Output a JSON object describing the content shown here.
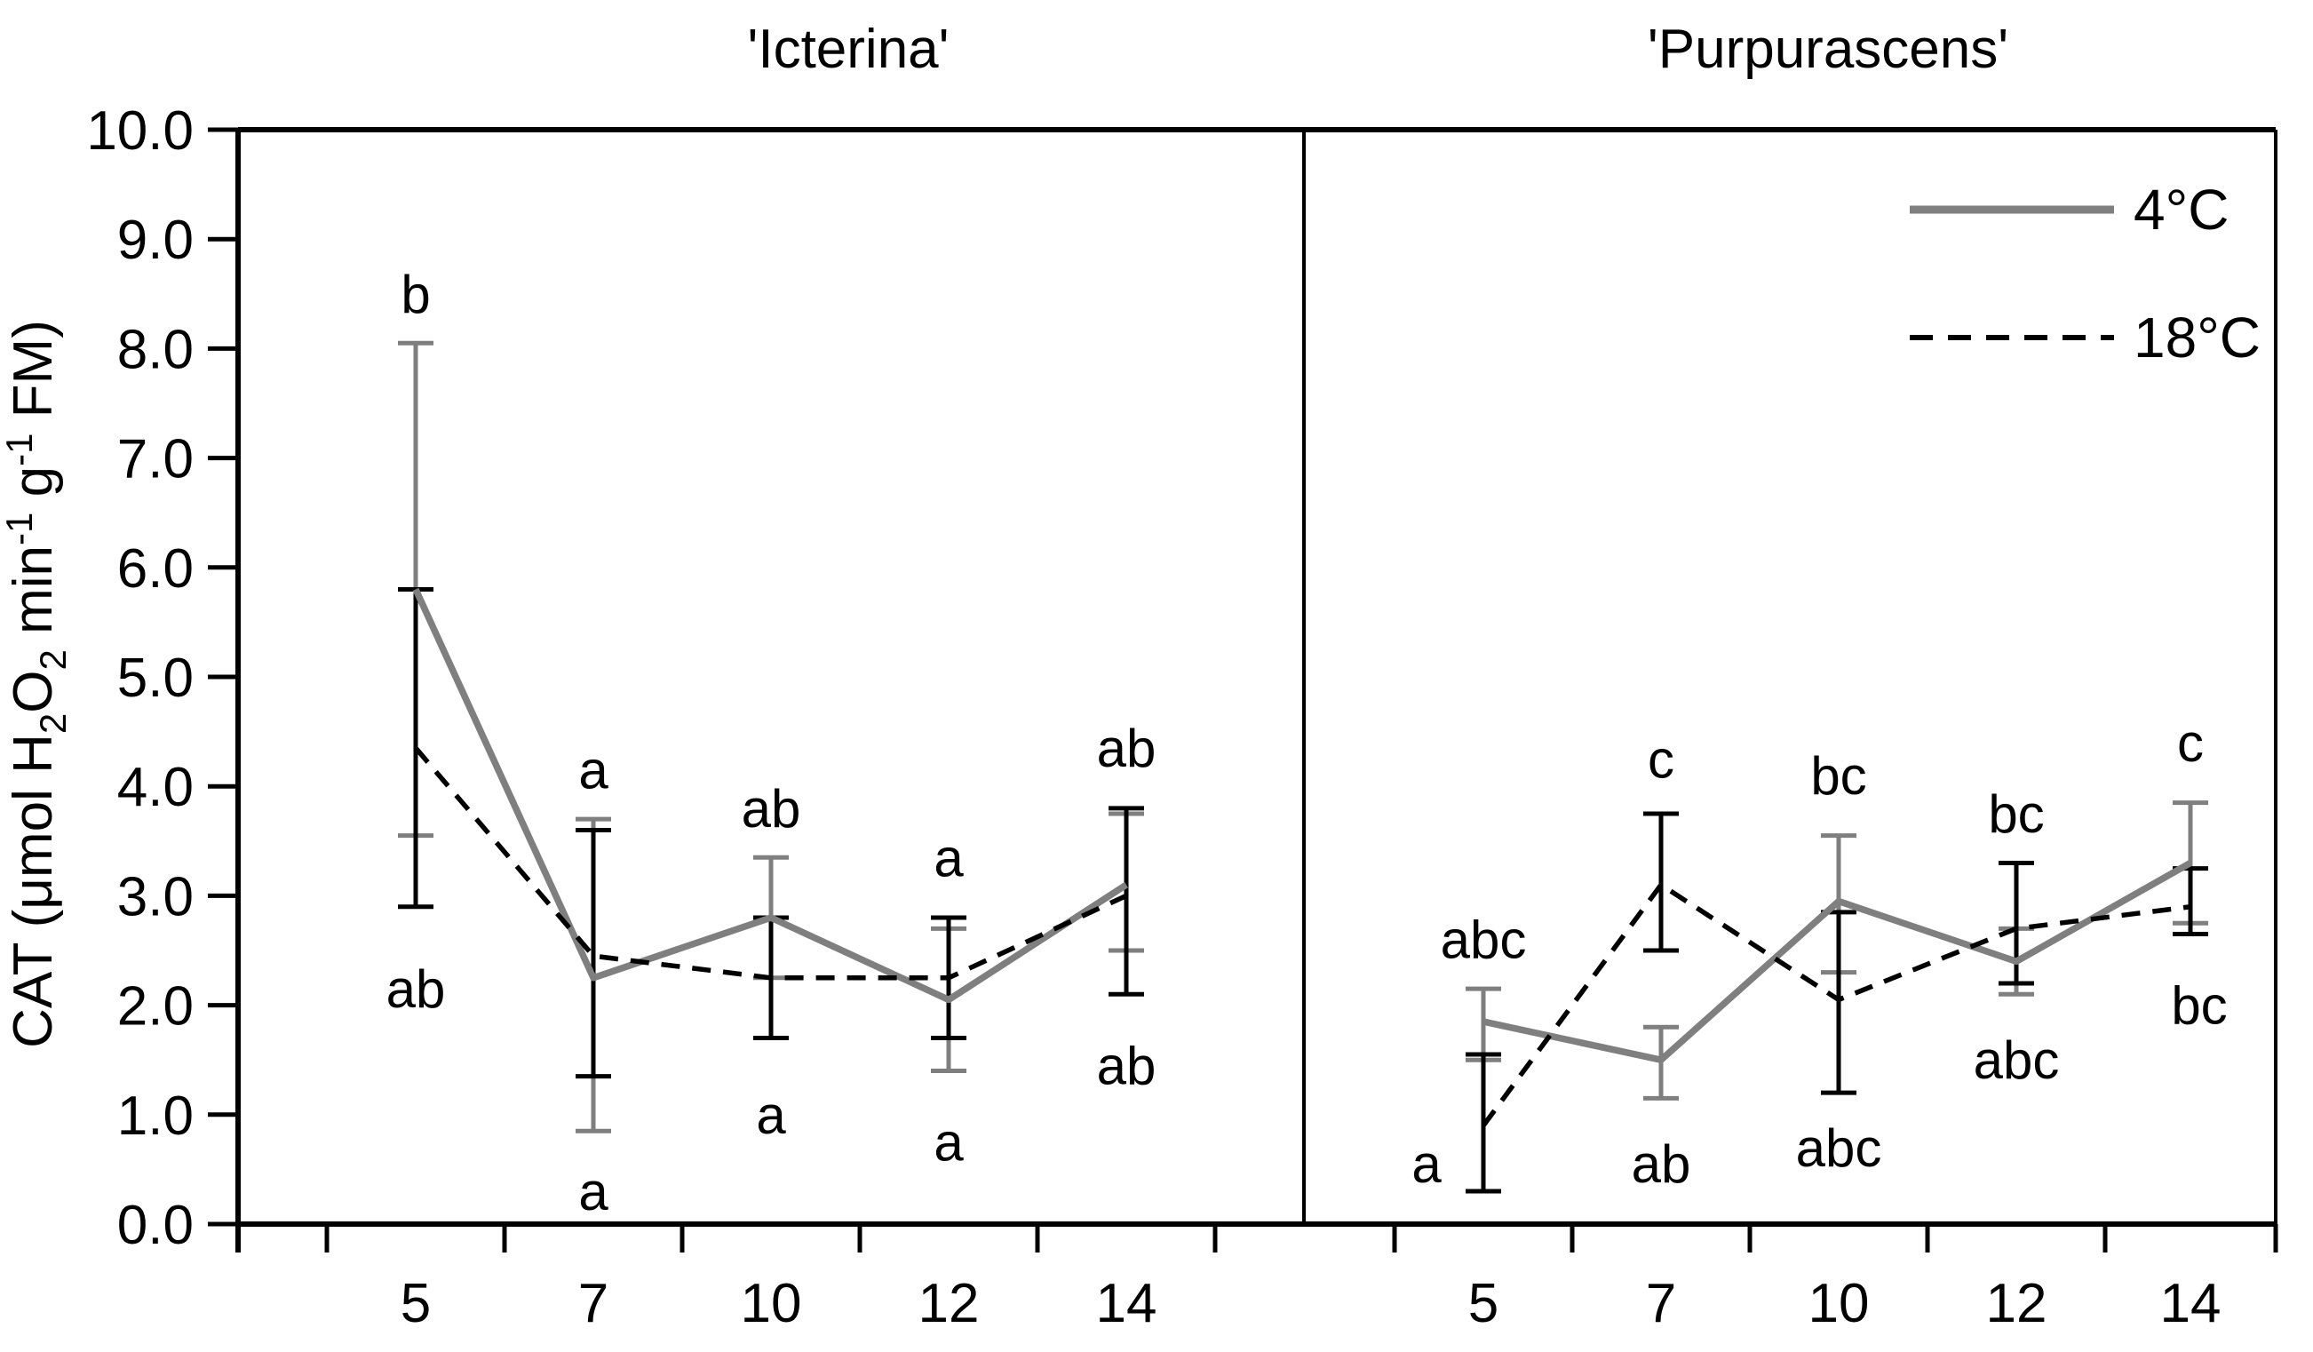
{
  "figure": {
    "description": "Two-panel line chart of CAT enzyme activity with error bars and significance letters"
  },
  "chart_data": {
    "type": "line",
    "title": "",
    "xlabel": "",
    "ylabel": "CAT (μmol H2O2 min-1 g-1 FM)",
    "ylabel_parts": [
      {
        "t": "CAT (μmol H",
        "p": "n"
      },
      {
        "t": "2",
        "p": "b"
      },
      {
        "t": "O",
        "p": "n"
      },
      {
        "t": "2",
        "p": "b"
      },
      {
        "t": " min",
        "p": "n"
      },
      {
        "t": "-1",
        "p": "u"
      },
      {
        "t": " g",
        "p": "n"
      },
      {
        "t": "-1",
        "p": "u"
      },
      {
        "t": " FM)",
        "p": "n"
      }
    ],
    "ylim": [
      0,
      10
    ],
    "ytick_labels": [
      "0.0",
      "1.0",
      "2.0",
      "3.0",
      "4.0",
      "5.0",
      "6.0",
      "7.0",
      "8.0",
      "9.0",
      "10.0"
    ],
    "x_categories": [
      "5",
      "7",
      "10",
      "12",
      "14"
    ],
    "grid": false,
    "legend_position": "top-right",
    "colors": {
      "gray": "#7f7f7f",
      "black": "#000000"
    },
    "legend": {
      "items": [
        {
          "label": "4°C",
          "line": "solid",
          "color_key": "gray"
        },
        {
          "label": "18°C",
          "line": "dashed",
          "color_key": "black"
        }
      ]
    },
    "panels": [
      {
        "title": "'Icterina'",
        "series": [
          {
            "name": "4°C",
            "color_key": "gray",
            "dash": false,
            "values": [
              5.8,
              2.25,
              2.8,
              2.05,
              3.1
            ],
            "err_lo": [
              3.55,
              0.85,
              2.25,
              1.4,
              2.5
            ],
            "err_hi": [
              8.05,
              3.7,
              3.35,
              2.7,
              3.75
            ],
            "letters": [
              {
                "i": 0,
                "t": "b",
                "v": 8.5
              },
              {
                "i": 1,
                "t": "a",
                "v": 0.3
              },
              {
                "i": 2,
                "t": "ab",
                "v": 3.8
              },
              {
                "i": 3,
                "t": "a",
                "v": 0.75
              },
              {
                "i": 4,
                "t": "ab",
                "v": 4.35
              }
            ]
          },
          {
            "name": "18°C",
            "color_key": "black",
            "dash": true,
            "values": [
              4.35,
              2.45,
              2.25,
              2.25,
              3.0
            ],
            "err_lo": [
              2.9,
              1.35,
              1.7,
              1.7,
              2.1
            ],
            "err_hi": [
              5.8,
              3.6,
              2.8,
              2.8,
              3.8
            ],
            "letters": [
              {
                "i": 0,
                "t": "ab",
                "v": 2.15
              },
              {
                "i": 1,
                "t": "a",
                "v": 4.15
              },
              {
                "i": 2,
                "t": "a",
                "v": 1.0
              },
              {
                "i": 3,
                "t": "a",
                "v": 3.35
              },
              {
                "i": 4,
                "t": "ab",
                "v": 1.45
              }
            ]
          }
        ]
      },
      {
        "title": "'Purpurascens'",
        "series": [
          {
            "name": "4°C",
            "color_key": "gray",
            "dash": false,
            "values": [
              1.85,
              1.5,
              2.95,
              2.4,
              3.3
            ],
            "err_lo": [
              1.5,
              1.15,
              2.3,
              2.1,
              2.75
            ],
            "err_hi": [
              2.15,
              1.8,
              3.55,
              2.7,
              3.85
            ],
            "letters": [
              {
                "i": 0,
                "t": "abc",
                "v": 2.6
              },
              {
                "i": 1,
                "t": "ab",
                "v": 0.55
              },
              {
                "i": 2,
                "t": "bc",
                "v": 4.1
              },
              {
                "i": 3,
                "t": "abc",
                "v": 1.5
              },
              {
                "i": 4,
                "t": "c",
                "v": 4.4
              }
            ]
          },
          {
            "name": "18°C",
            "color_key": "black",
            "dash": true,
            "values": [
              0.9,
              3.1,
              2.05,
              2.7,
              2.9
            ],
            "err_lo": [
              0.3,
              2.5,
              1.2,
              2.2,
              2.65
            ],
            "err_hi": [
              1.55,
              3.75,
              2.85,
              3.3,
              3.25
            ],
            "letters": [
              {
                "i": 0,
                "t": "a",
                "v": 0.55,
                "dx": -64
              },
              {
                "i": 1,
                "t": "c",
                "v": 4.25
              },
              {
                "i": 2,
                "t": "abc",
                "v": 0.7
              },
              {
                "i": 3,
                "t": "bc",
                "v": 3.75
              },
              {
                "i": 4,
                "t": "bc",
                "v": 2.0,
                "dx": 10
              }
            ]
          }
        ]
      }
    ]
  }
}
